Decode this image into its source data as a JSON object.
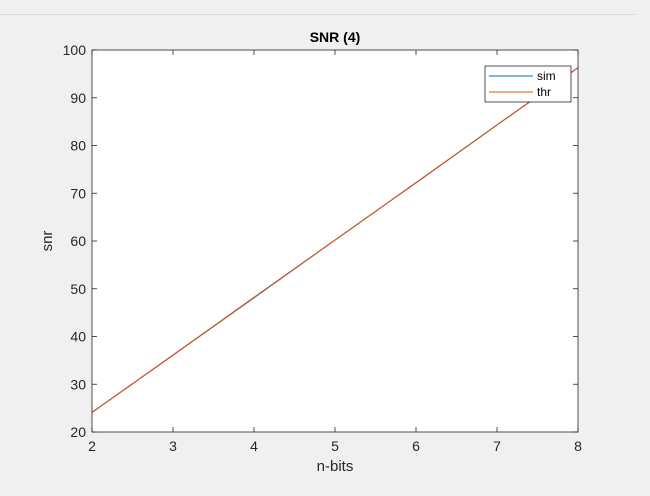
{
  "chart_data": {
    "type": "line",
    "title": "SNR (4)",
    "xlabel": "n-bits",
    "ylabel": "snr",
    "xlim": [
      2,
      8
    ],
    "ylim": [
      20,
      100
    ],
    "xticks": [
      2,
      3,
      4,
      5,
      6,
      7,
      8
    ],
    "yticks": [
      20,
      30,
      40,
      50,
      60,
      70,
      80,
      90,
      100
    ],
    "grid": false,
    "legend_position": "top-right",
    "x": [
      2,
      3,
      4,
      5,
      6,
      7,
      8
    ],
    "series": [
      {
        "name": "sim",
        "color": "#0072bd",
        "values": [
          24.1,
          36.1,
          48.1,
          60.2,
          72.2,
          84.3,
          96.3
        ]
      },
      {
        "name": "thr",
        "color": "#d95319",
        "values": [
          24.1,
          36.1,
          48.2,
          60.2,
          72.2,
          84.3,
          96.3
        ]
      }
    ]
  }
}
